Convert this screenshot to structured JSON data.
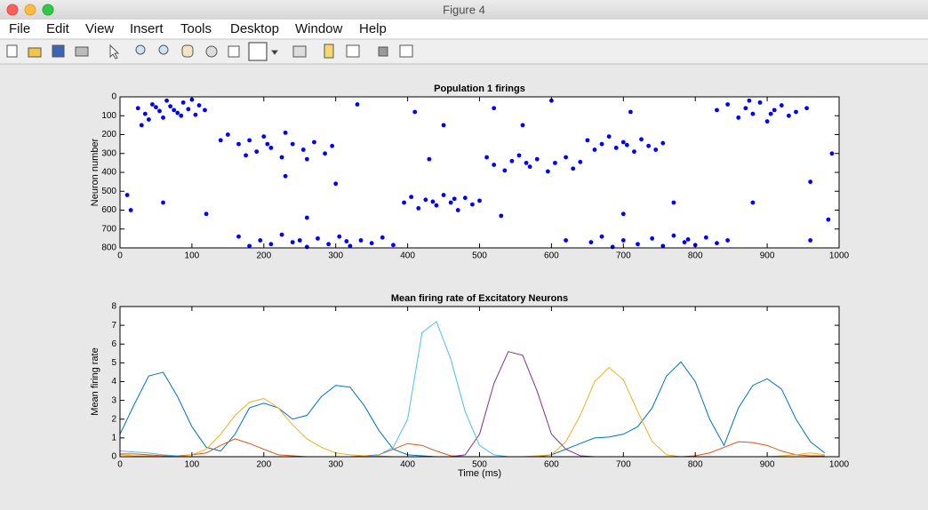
{
  "window": {
    "title": "Figure 4",
    "menu": [
      "File",
      "Edit",
      "View",
      "Insert",
      "Tools",
      "Desktop",
      "Window",
      "Help"
    ]
  },
  "chart_data": [
    {
      "type": "scatter",
      "title": "Population 1 firings",
      "y_label": "Neuron number",
      "color": "#0000ff",
      "xlim": [
        0,
        1000
      ],
      "ylim": [
        0,
        800
      ],
      "y_reversed": true,
      "xticks": [
        0,
        100,
        200,
        300,
        400,
        500,
        600,
        700,
        800,
        900,
        1000
      ],
      "yticks": [
        0,
        100,
        200,
        300,
        400,
        500,
        600,
        700,
        800
      ],
      "x": [
        25,
        35,
        45,
        55,
        60,
        70,
        80,
        88,
        95,
        105,
        110,
        118,
        40,
        65,
        100,
        50,
        85,
        75,
        150,
        165,
        180,
        190,
        200,
        210,
        225,
        240,
        255,
        270,
        285,
        295,
        175,
        230,
        260,
        205,
        165,
        180,
        195,
        210,
        225,
        240,
        260,
        275,
        290,
        305,
        320,
        335,
        350,
        365,
        380,
        250,
        315,
        395,
        405,
        415,
        425,
        440,
        450,
        460,
        470,
        480,
        490,
        500,
        435,
        465,
        510,
        520,
        535,
        545,
        555,
        570,
        580,
        595,
        605,
        620,
        630,
        640,
        565,
        650,
        660,
        670,
        680,
        690,
        700,
        715,
        725,
        735,
        745,
        755,
        705,
        655,
        670,
        685,
        700,
        720,
        740,
        755,
        770,
        785,
        800,
        815,
        830,
        845,
        790,
        830,
        845,
        860,
        870,
        880,
        890,
        900,
        910,
        920,
        930,
        940,
        955,
        875,
        905,
        10,
        15,
        30,
        60,
        120,
        140,
        230,
        260,
        300,
        330,
        410,
        430,
        450,
        520,
        530,
        560,
        620,
        700,
        770,
        880,
        960,
        990,
        985,
        960,
        710,
        600
      ],
      "values": [
        60,
        90,
        40,
        75,
        110,
        50,
        85,
        30,
        65,
        95,
        45,
        70,
        120,
        20,
        15,
        55,
        100,
        70,
        200,
        250,
        230,
        290,
        210,
        270,
        320,
        250,
        280,
        240,
        300,
        260,
        310,
        190,
        330,
        250,
        740,
        790,
        760,
        780,
        730,
        770,
        795,
        750,
        780,
        740,
        790,
        760,
        775,
        745,
        785,
        760,
        765,
        560,
        530,
        590,
        545,
        575,
        520,
        560,
        600,
        535,
        570,
        550,
        555,
        540,
        320,
        360,
        390,
        340,
        310,
        370,
        330,
        395,
        350,
        320,
        380,
        345,
        350,
        230,
        280,
        250,
        210,
        270,
        240,
        290,
        225,
        260,
        280,
        245,
        255,
        770,
        740,
        795,
        760,
        780,
        750,
        790,
        735,
        770,
        785,
        745,
        775,
        760,
        755,
        70,
        40,
        110,
        60,
        90,
        30,
        130,
        70,
        45,
        100,
        80,
        60,
        20,
        90,
        520,
        600,
        150,
        560,
        620,
        230,
        420,
        640,
        460,
        40,
        80,
        330,
        150,
        60,
        630,
        150,
        760,
        620,
        560,
        560,
        450,
        300,
        650,
        760,
        80,
        20
      ]
    },
    {
      "type": "line",
      "title": "Mean firing rate of Excitatory Neurons",
      "x_label": "Time (ms)",
      "y_label": "Mean firing rate",
      "xlim": [
        0,
        1000
      ],
      "ylim": [
        0,
        8
      ],
      "xticks": [
        0,
        100,
        200,
        300,
        400,
        500,
        600,
        700,
        800,
        900,
        1000
      ],
      "yticks": [
        0,
        1,
        2,
        3,
        4,
        5,
        6,
        7,
        8
      ],
      "x": [
        0,
        20,
        40,
        60,
        80,
        100,
        120,
        140,
        160,
        180,
        200,
        220,
        240,
        260,
        280,
        300,
        320,
        340,
        360,
        380,
        400,
        420,
        440,
        460,
        480,
        500,
        520,
        540,
        560,
        580,
        600,
        620,
        640,
        660,
        680,
        700,
        720,
        740,
        760,
        780,
        800,
        820,
        840,
        860,
        880,
        900,
        920,
        940,
        960,
        980
      ],
      "series": [
        {
          "color": "#0072bd",
          "values": [
            1.2,
            2.8,
            4.3,
            4.5,
            3.2,
            1.6,
            0.5,
            0.3,
            1.2,
            2.6,
            2.85,
            2.6,
            2.0,
            2.2,
            3.2,
            3.8,
            3.7,
            2.7,
            1.4,
            0.4,
            0.1,
            0.05,
            0,
            0,
            0,
            0,
            0,
            0,
            0,
            0,
            0.1,
            0.4,
            0.7,
            1.0,
            1.05,
            1.2,
            1.6,
            2.6,
            4.3,
            5.05,
            4.0,
            2.0,
            0.6,
            2.6,
            3.8,
            4.15,
            3.6,
            2.0,
            0.8,
            0.2
          ]
        },
        {
          "color": "#d95319",
          "values": [
            0.15,
            0.15,
            0.1,
            0.05,
            0.05,
            0.1,
            0.2,
            0.6,
            0.95,
            0.7,
            0.4,
            0.1,
            0.05,
            0,
            0,
            0,
            0,
            0.05,
            0.1,
            0.4,
            0.7,
            0.6,
            0.3,
            0.05,
            0,
            0,
            0,
            0,
            0,
            0,
            0,
            0,
            0,
            0,
            0,
            0,
            0,
            0,
            0,
            0,
            0.05,
            0.2,
            0.5,
            0.8,
            0.75,
            0.6,
            0.3,
            0.1,
            0.05,
            0.05
          ]
        },
        {
          "color": "#edb120",
          "values": [
            0.1,
            0.05,
            0.05,
            0,
            0,
            0.1,
            0.4,
            1.2,
            2.2,
            2.9,
            3.1,
            2.6,
            1.7,
            0.95,
            0.5,
            0.2,
            0.1,
            0.05,
            0.05,
            0,
            0,
            0,
            0,
            0,
            0,
            0,
            0,
            0,
            0,
            0.05,
            0.1,
            0.8,
            2.2,
            4.0,
            4.75,
            4.1,
            2.4,
            0.8,
            0.1,
            0,
            0,
            0,
            0,
            0,
            0,
            0,
            0.05,
            0.1,
            0.2,
            0.1
          ]
        },
        {
          "color": "#7e2f8e",
          "values": [
            0,
            0,
            0,
            0,
            0,
            0,
            0,
            0,
            0,
            0,
            0,
            0,
            0,
            0,
            0,
            0,
            0,
            0,
            0,
            0,
            0,
            0,
            0,
            0,
            0.1,
            1.2,
            3.9,
            5.6,
            5.4,
            3.5,
            1.2,
            0.4,
            0.05,
            0,
            0,
            0,
            0,
            0,
            0,
            0,
            0,
            0,
            0,
            0,
            0,
            0,
            0,
            0,
            0,
            0
          ]
        },
        {
          "color": "#4dbeee",
          "values": [
            0.3,
            0.25,
            0.2,
            0.1,
            0.05,
            0,
            0,
            0,
            0,
            0,
            0,
            0,
            0,
            0,
            0,
            0,
            0,
            0,
            0.1,
            0.5,
            2.0,
            6.6,
            7.2,
            5.2,
            2.4,
            0.6,
            0.1,
            0,
            0,
            0,
            0,
            0,
            0,
            0,
            0,
            0,
            0,
            0,
            0,
            0,
            0,
            0,
            0,
            0,
            0,
            0,
            0,
            0,
            0,
            0
          ]
        }
      ]
    }
  ]
}
